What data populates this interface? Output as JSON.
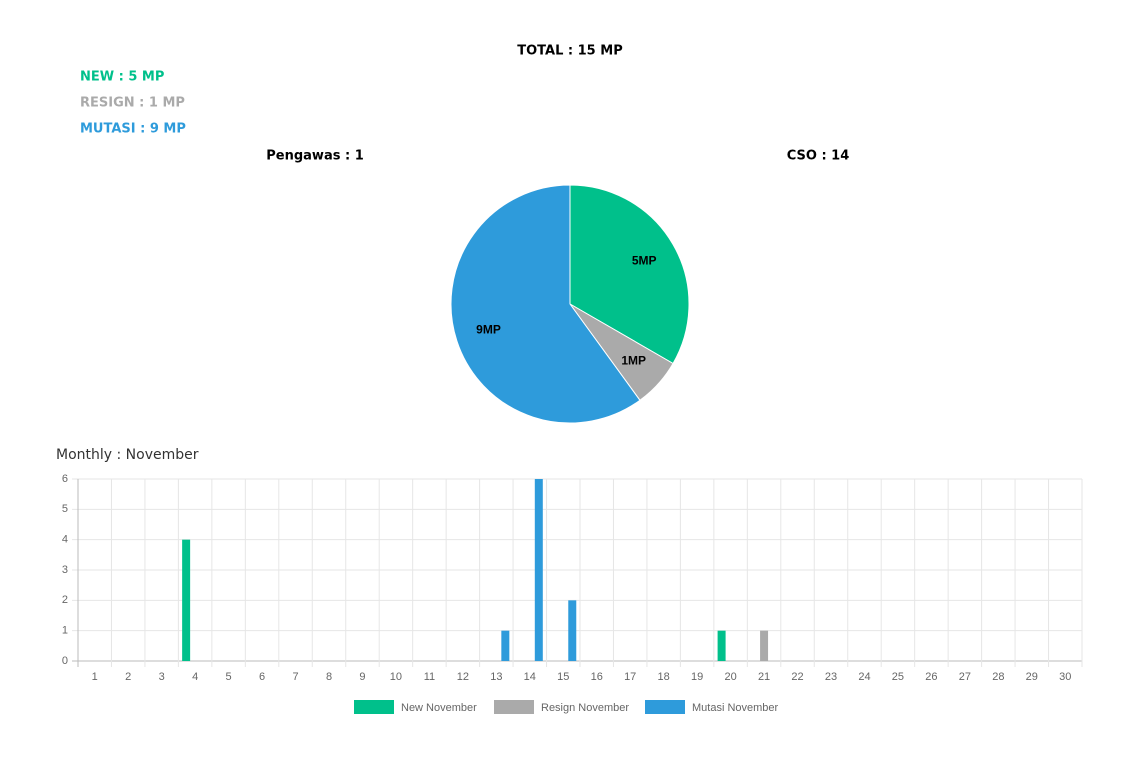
{
  "header": {
    "total": "TOTAL : 15 MP",
    "new": "NEW : 5 MP",
    "resign": "RESIGN : 1 MP",
    "mutasi": "MUTASI : 9 MP",
    "pengawas": "Pengawas : 1",
    "cso": "CSO : 14"
  },
  "chart_data": [
    {
      "type": "pie",
      "values": [
        5,
        1,
        9
      ],
      "value_labels": [
        "5MP",
        "1MP",
        "9MP"
      ],
      "colors": [
        "#00c08b",
        "#aaaaaa",
        "#2e9bdb"
      ]
    },
    {
      "type": "bar",
      "title": "Monthly : November",
      "categories": [
        "1",
        "2",
        "3",
        "4",
        "5",
        "6",
        "7",
        "8",
        "9",
        "10",
        "11",
        "12",
        "13",
        "14",
        "15",
        "16",
        "17",
        "18",
        "19",
        "20",
        "21",
        "22",
        "23",
        "24",
        "25",
        "26",
        "27",
        "28",
        "29",
        "30"
      ],
      "series": [
        {
          "name": "New November",
          "color": "#00c08b",
          "values": [
            0,
            0,
            0,
            4,
            0,
            0,
            0,
            0,
            0,
            0,
            0,
            0,
            0,
            0,
            0,
            0,
            0,
            0,
            0,
            1,
            0,
            0,
            0,
            0,
            0,
            0,
            0,
            0,
            0,
            0
          ]
        },
        {
          "name": "Resign November",
          "color": "#aaaaaa",
          "values": [
            0,
            0,
            0,
            0,
            0,
            0,
            0,
            0,
            0,
            0,
            0,
            0,
            0,
            0,
            0,
            0,
            0,
            0,
            0,
            0,
            1,
            0,
            0,
            0,
            0,
            0,
            0,
            0,
            0,
            0
          ]
        },
        {
          "name": "Mutasi November",
          "color": "#2e9bdb",
          "values": [
            0,
            0,
            0,
            0,
            0,
            0,
            0,
            0,
            0,
            0,
            0,
            0,
            1,
            6,
            2,
            0,
            0,
            0,
            0,
            0,
            0,
            0,
            0,
            0,
            0,
            0,
            0,
            0,
            0,
            0
          ]
        }
      ],
      "ylim": [
        0,
        6
      ],
      "yticks": [
        0,
        1,
        2,
        3,
        4,
        5,
        6
      ],
      "grid": true
    }
  ]
}
